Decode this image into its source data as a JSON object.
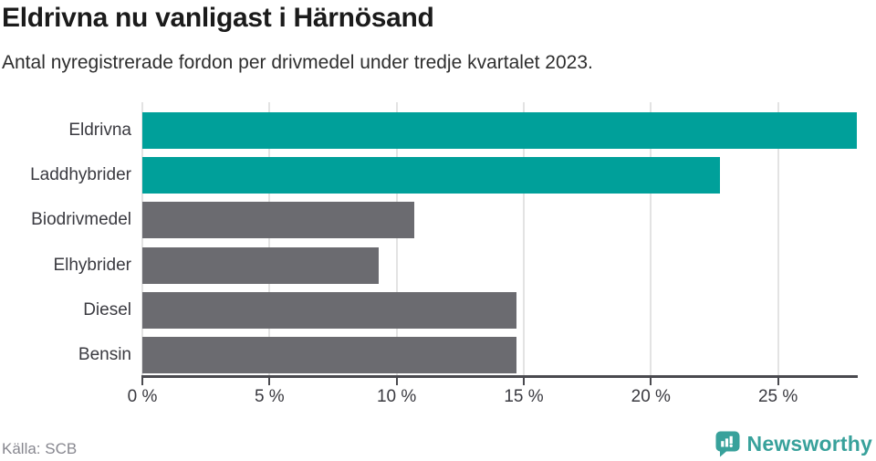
{
  "header": {
    "title": "Eldrivna nu vanligast i Härnösand",
    "subtitle": "Antal nyregistrerade fordon per drivmedel under tredje kvartalet 2023."
  },
  "chart_data": {
    "type": "bar",
    "orientation": "horizontal",
    "title": "Eldrivna nu vanligast i Härnösand",
    "subtitle": "Antal nyregistrerade fordon per drivmedel under tredje kvartalet 2023.",
    "categories": [
      "Eldrivna",
      "Laddhybrider",
      "Biodrivmedel",
      "Elhybrider",
      "Diesel",
      "Bensin"
    ],
    "values": [
      28.1,
      22.7,
      10.7,
      9.3,
      14.7,
      14.7
    ],
    "unit": "%",
    "xlim": [
      0,
      28.1
    ],
    "x_ticks": [
      {
        "value": 0,
        "label": "0 %"
      },
      {
        "value": 5,
        "label": "5 %"
      },
      {
        "value": 10,
        "label": "10 %"
      },
      {
        "value": 15,
        "label": "15 %"
      },
      {
        "value": 20,
        "label": "20 %"
      },
      {
        "value": 25,
        "label": "25 %"
      }
    ],
    "bar_colors": [
      "#00a09a",
      "#00a09a",
      "#6b6b70",
      "#6b6b70",
      "#6b6b70",
      "#6b6b70"
    ],
    "highlight_color": "#00a09a",
    "default_color": "#6b6b70",
    "grid": "vertical-only",
    "legend": "none"
  },
  "footer": {
    "source": "Källa: SCB",
    "brand": "Newsworthy"
  },
  "colors": {
    "accent_teal": "#00a09a",
    "bar_gray": "#6b6b70",
    "brand_teal": "#38a19b",
    "axis": "#4a4a4f",
    "gridline": "#e3e3e3",
    "title_text": "#1b1b1b",
    "subtitle_text": "#2e2e2e",
    "label_text": "#3a3a40",
    "muted_text": "#87878f"
  }
}
